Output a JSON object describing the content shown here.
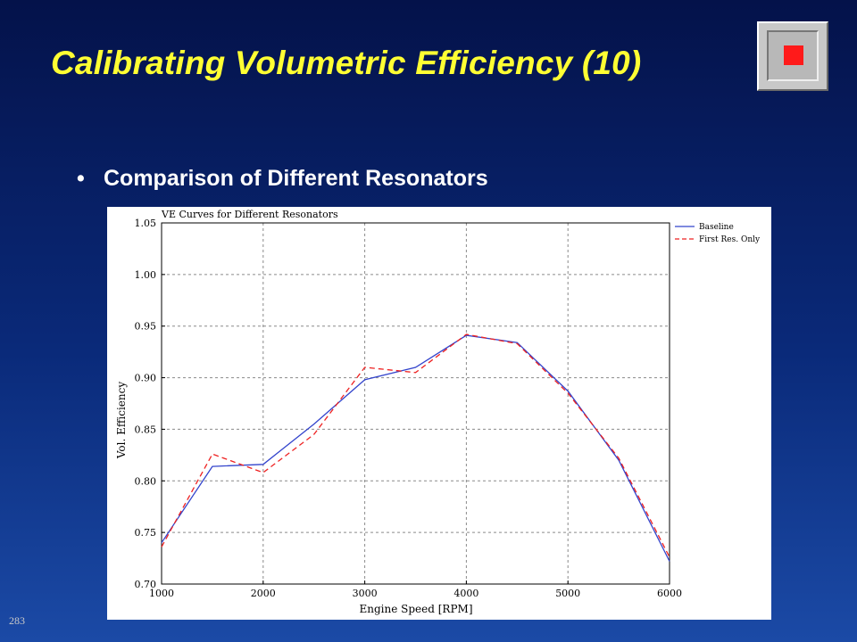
{
  "slide": {
    "title": "Calibrating Volumetric Efficiency (10)",
    "bullet_marker": "•",
    "bullet": "Comparison of Different Resonators",
    "slide_number": "283"
  },
  "colors": {
    "title": "#ffff33",
    "baseline": "#3344cc",
    "first_res_only": "#ee2222",
    "stop_square": "#ff1a1a"
  },
  "icons": {
    "nav_button": "stop-square-icon"
  },
  "chart_data": {
    "type": "line",
    "title": "VE Curves for Different Resonators",
    "xlabel": "Engine Speed [RPM]",
    "ylabel": "Vol. Efficiency",
    "xlim": [
      1000,
      6000
    ],
    "ylim": [
      0.7,
      1.05
    ],
    "x_ticks": [
      "1000",
      "2000",
      "3000",
      "4000",
      "5000",
      "6000"
    ],
    "y_ticks": [
      "0.70",
      "0.75",
      "0.80",
      "0.85",
      "0.90",
      "0.95",
      "1.00",
      "1.05"
    ],
    "grid": true,
    "legend_position": "top-right-outside",
    "series": [
      {
        "name": "Baseline",
        "style": "solid",
        "x": [
          1000,
          1500,
          2000,
          2500,
          3000,
          3500,
          4000,
          4500,
          5000,
          5500,
          6000
        ],
        "y": [
          0.74,
          0.814,
          0.816,
          0.855,
          0.898,
          0.91,
          0.941,
          0.934,
          0.887,
          0.82,
          0.722
        ]
      },
      {
        "name": "First Res. Only",
        "style": "dashed",
        "x": [
          1000,
          1500,
          2000,
          2500,
          3000,
          3500,
          4000,
          4500,
          5000,
          5500,
          6000
        ],
        "y": [
          0.736,
          0.826,
          0.808,
          0.845,
          0.91,
          0.905,
          0.942,
          0.933,
          0.885,
          0.822,
          0.726
        ]
      }
    ]
  }
}
